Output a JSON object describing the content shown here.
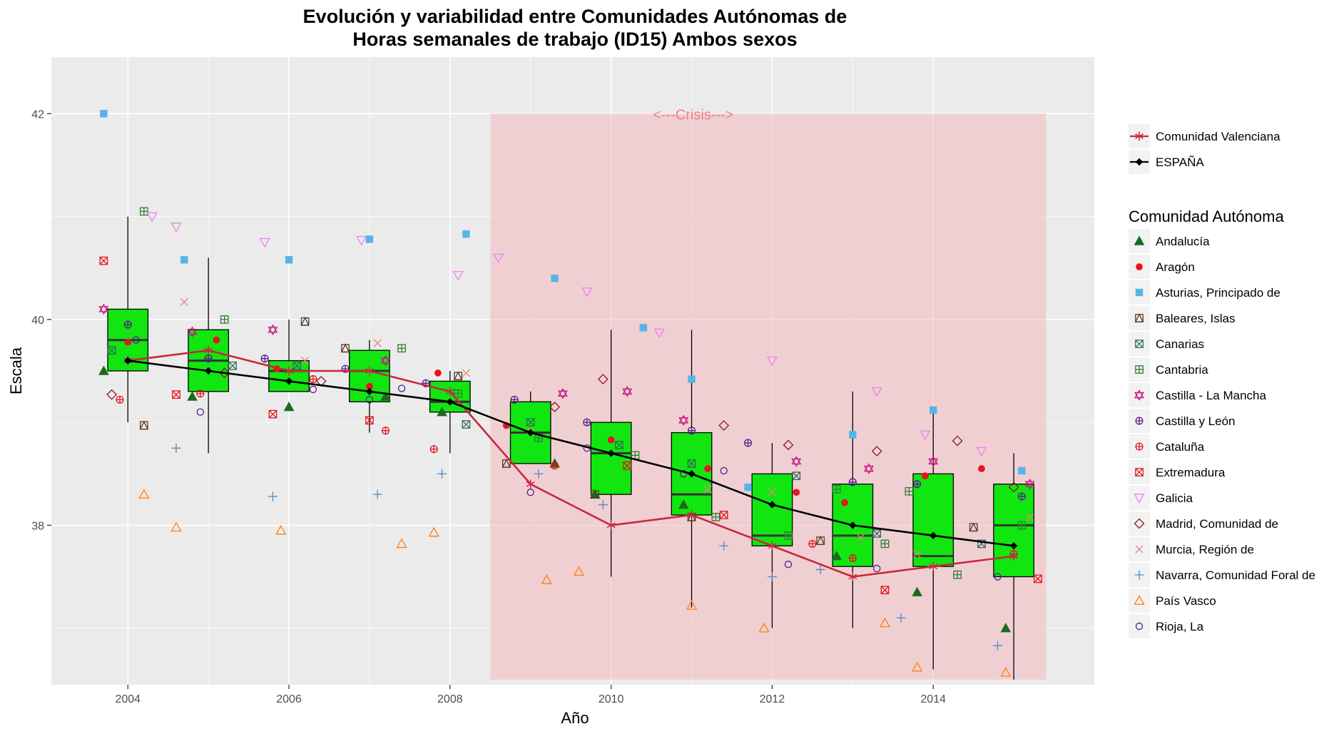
{
  "chart_data": {
    "type": "box",
    "title_lines": [
      "Evolución y variabilidad entre Comunidades Autónomas de",
      "Horas semanales de trabajo (ID15) Ambos sexos"
    ],
    "xlabel": "Año",
    "ylabel": "Escala",
    "xlim": [
      2003.05,
      2016.0
    ],
    "ylim": [
      36.45,
      42.55
    ],
    "x_ticks": [
      2004,
      2006,
      2008,
      2010,
      2012,
      2014
    ],
    "y_ticks": [
      38,
      40,
      42
    ],
    "grid": true,
    "crisis_band": {
      "x_start": 2008.5,
      "x_end": 2015.4,
      "y_start": 36.5,
      "y_end": 42,
      "label": "<---Crisis--->",
      "color": "#f4b8be"
    },
    "boxes": [
      {
        "x": 2004,
        "q1": 39.5,
        "median": 39.8,
        "q3": 40.1,
        "low": 39.0,
        "high": 41.0
      },
      {
        "x": 2005,
        "q1": 39.3,
        "median": 39.6,
        "q3": 39.9,
        "low": 38.7,
        "high": 40.6
      },
      {
        "x": 2006,
        "q1": 39.3,
        "median": 39.5,
        "q3": 39.6,
        "low": 39.3,
        "high": 40.0
      },
      {
        "x": 2007,
        "q1": 39.2,
        "median": 39.5,
        "q3": 39.7,
        "low": 38.9,
        "high": 39.8
      },
      {
        "x": 2008,
        "q1": 39.1,
        "median": 39.2,
        "q3": 39.4,
        "low": 38.7,
        "high": 39.5
      },
      {
        "x": 2009,
        "q1": 38.6,
        "median": 38.9,
        "q3": 39.2,
        "low": 38.6,
        "high": 39.3
      },
      {
        "x": 2010,
        "q1": 38.3,
        "median": 38.7,
        "q3": 39.0,
        "low": 37.5,
        "high": 39.9
      },
      {
        "x": 2011,
        "q1": 38.1,
        "median": 38.3,
        "q3": 38.9,
        "low": 37.2,
        "high": 39.9
      },
      {
        "x": 2012,
        "q1": 37.8,
        "median": 37.9,
        "q3": 38.5,
        "low": 37.0,
        "high": 38.8
      },
      {
        "x": 2013,
        "q1": 37.6,
        "median": 37.9,
        "q3": 38.4,
        "low": 37.0,
        "high": 39.3
      },
      {
        "x": 2014,
        "q1": 37.6,
        "median": 37.7,
        "q3": 38.5,
        "low": 36.6,
        "high": 39.1
      },
      {
        "x": 2015,
        "q1": 37.5,
        "median": 38.0,
        "q3": 38.4,
        "low": 36.5,
        "high": 38.7
      }
    ],
    "box_fill": "#11e611",
    "lines": [
      {
        "name": "Comunidad Valenciana",
        "color": "#c8283c",
        "shape": "asterisk",
        "x": [
          2004,
          2005,
          2006,
          2007,
          2008,
          2009,
          2010,
          2011,
          2012,
          2013,
          2014,
          2015
        ],
        "y": [
          39.6,
          39.7,
          39.5,
          39.5,
          39.3,
          38.4,
          38.0,
          38.1,
          37.8,
          37.5,
          37.6,
          37.7
        ]
      },
      {
        "name": "ESPAÑA",
        "color": "#000000",
        "shape": "diamond",
        "x": [
          2004,
          2005,
          2006,
          2007,
          2008,
          2009,
          2010,
          2011,
          2012,
          2013,
          2014,
          2015
        ],
        "y": [
          39.6,
          39.5,
          39.4,
          39.3,
          39.2,
          38.9,
          38.7,
          38.5,
          38.2,
          38.0,
          37.9,
          37.8
        ]
      }
    ],
    "legend_title": "Comunidad Autónoma",
    "series": [
      {
        "name": "Andalucía",
        "shape": "triangle-filled",
        "color": "#1a6b1a",
        "points": [
          [
            2003.7,
            39.5
          ],
          [
            2004.8,
            39.25
          ],
          [
            2006.0,
            39.15
          ],
          [
            2007.2,
            39.25
          ],
          [
            2007.9,
            39.1
          ],
          [
            2009.3,
            38.6
          ],
          [
            2009.8,
            38.3
          ],
          [
            2010.9,
            38.2
          ],
          [
            2012.8,
            37.7
          ],
          [
            2013.8,
            37.35
          ],
          [
            2014.9,
            37.0
          ]
        ]
      },
      {
        "name": "Aragón",
        "shape": "circle-filled",
        "color": "#e6141e",
        "points": [
          [
            2004.0,
            39.78
          ],
          [
            2005.1,
            39.8
          ],
          [
            2005.85,
            39.52
          ],
          [
            2007.0,
            39.35
          ],
          [
            2007.85,
            39.48
          ],
          [
            2008.7,
            38.97
          ],
          [
            2010.0,
            38.83
          ],
          [
            2011.2,
            38.55
          ],
          [
            2012.3,
            38.32
          ],
          [
            2012.9,
            38.22
          ],
          [
            2013.9,
            38.48
          ],
          [
            2014.6,
            38.55
          ]
        ]
      },
      {
        "name": "Asturias, Principado de",
        "shape": "square-filled",
        "color": "#56b4e9",
        "points": [
          [
            2003.7,
            42.0
          ],
          [
            2004.7,
            40.58
          ],
          [
            2006.0,
            40.58
          ],
          [
            2007.0,
            40.78
          ],
          [
            2008.2,
            40.83
          ],
          [
            2009.3,
            40.4
          ],
          [
            2010.4,
            39.92
          ],
          [
            2011.0,
            39.42
          ],
          [
            2011.7,
            38.37
          ],
          [
            2013.0,
            38.88
          ],
          [
            2014.0,
            39.12
          ],
          [
            2015.1,
            38.53
          ]
        ]
      },
      {
        "name": "Baleares, Islas",
        "shape": "square-triangle",
        "color": "#5a3a1e",
        "points": [
          [
            2004.2,
            38.97
          ],
          [
            2006.2,
            39.98
          ],
          [
            2006.7,
            39.72
          ],
          [
            2008.1,
            39.45
          ],
          [
            2008.7,
            38.6
          ],
          [
            2009.8,
            38.3
          ],
          [
            2011.0,
            38.08
          ],
          [
            2012.6,
            37.85
          ],
          [
            2014.5,
            37.98
          ]
        ]
      },
      {
        "name": "Canarias",
        "shape": "square-x",
        "color": "#2f6b5a",
        "points": [
          [
            2003.8,
            39.7
          ],
          [
            2005.3,
            39.55
          ],
          [
            2006.1,
            39.55
          ],
          [
            2008.2,
            38.98
          ],
          [
            2009.0,
            39.0
          ],
          [
            2010.1,
            38.78
          ],
          [
            2011.0,
            38.6
          ],
          [
            2012.3,
            38.48
          ],
          [
            2013.3,
            37.92
          ],
          [
            2014.6,
            37.82
          ]
        ]
      },
      {
        "name": "Cantabria",
        "shape": "square-plus",
        "color": "#2e7d32",
        "points": [
          [
            2004.2,
            41.05
          ],
          [
            2005.2,
            40.0
          ],
          [
            2007.4,
            39.72
          ],
          [
            2008.1,
            39.28
          ],
          [
            2009.1,
            38.85
          ],
          [
            2010.3,
            38.68
          ],
          [
            2011.3,
            38.08
          ],
          [
            2012.2,
            37.9
          ],
          [
            2012.8,
            38.35
          ],
          [
            2013.4,
            37.82
          ],
          [
            2013.7,
            38.33
          ],
          [
            2014.3,
            37.52
          ],
          [
            2015.1,
            38.0
          ]
        ]
      },
      {
        "name": "Castilla - La Mancha",
        "shape": "star-of-david",
        "color": "#c71585",
        "points": [
          [
            2003.7,
            40.1
          ],
          [
            2004.8,
            39.88
          ],
          [
            2005.8,
            39.9
          ],
          [
            2007.2,
            39.6
          ],
          [
            2009.4,
            39.28
          ],
          [
            2010.2,
            39.3
          ],
          [
            2010.9,
            39.02
          ],
          [
            2012.3,
            38.62
          ],
          [
            2013.2,
            38.55
          ],
          [
            2014.0,
            38.62
          ],
          [
            2015.2,
            38.4
          ]
        ]
      },
      {
        "name": "Castilla y León",
        "shape": "circle-plus",
        "color": "#5b1a8c",
        "points": [
          [
            2004.0,
            39.95
          ],
          [
            2005.0,
            39.62
          ],
          [
            2005.7,
            39.62
          ],
          [
            2006.7,
            39.52
          ],
          [
            2007.7,
            39.38
          ],
          [
            2008.8,
            39.22
          ],
          [
            2009.7,
            39.0
          ],
          [
            2011.0,
            38.92
          ],
          [
            2011.7,
            38.8
          ],
          [
            2013.0,
            38.42
          ],
          [
            2013.8,
            38.4
          ],
          [
            2015.1,
            38.28
          ]
        ]
      },
      {
        "name": "Cataluña",
        "shape": "circle-plus",
        "color": "#e6141e",
        "points": [
          [
            2003.9,
            39.22
          ],
          [
            2004.9,
            39.28
          ],
          [
            2006.3,
            39.42
          ],
          [
            2007.2,
            38.92
          ],
          [
            2007.8,
            38.74
          ],
          [
            2009.3,
            38.58
          ],
          [
            2012.5,
            37.82
          ],
          [
            2013.0,
            37.68
          ],
          [
            2015.0,
            37.72
          ]
        ]
      },
      {
        "name": "Extremadura",
        "shape": "square-x",
        "color": "#e6141e",
        "points": [
          [
            2003.7,
            40.57
          ],
          [
            2004.6,
            39.27
          ],
          [
            2005.8,
            39.08
          ],
          [
            2007.0,
            39.02
          ],
          [
            2010.2,
            38.58
          ],
          [
            2011.4,
            38.1
          ],
          [
            2013.4,
            37.37
          ],
          [
            2015.3,
            37.48
          ]
        ]
      },
      {
        "name": "Galicia",
        "shape": "triangle-down-open",
        "color": "#ee82ee",
        "points": [
          [
            2004.3,
            41.0
          ],
          [
            2004.6,
            40.9
          ],
          [
            2005.7,
            40.75
          ],
          [
            2006.9,
            40.77
          ],
          [
            2008.1,
            40.43
          ],
          [
            2008.6,
            40.6
          ],
          [
            2009.7,
            40.27
          ],
          [
            2010.6,
            39.87
          ],
          [
            2012.0,
            39.6
          ],
          [
            2013.3,
            39.3
          ],
          [
            2013.9,
            38.88
          ],
          [
            2014.6,
            38.72
          ]
        ]
      },
      {
        "name": "Madrid, Comunidad de",
        "shape": "diamond-open",
        "color": "#8b1a1a",
        "points": [
          [
            2003.8,
            39.27
          ],
          [
            2005.2,
            39.48
          ],
          [
            2006.4,
            39.4
          ],
          [
            2009.3,
            39.15
          ],
          [
            2009.9,
            39.42
          ],
          [
            2011.4,
            38.97
          ],
          [
            2012.2,
            38.78
          ],
          [
            2013.3,
            38.72
          ],
          [
            2014.3,
            38.82
          ],
          [
            2015.0,
            38.37
          ]
        ]
      },
      {
        "name": "Murcia, Región de",
        "shape": "x",
        "color": "#f08080",
        "points": [
          [
            2004.7,
            40.17
          ],
          [
            2006.2,
            39.6
          ],
          [
            2007.1,
            39.77
          ],
          [
            2008.2,
            39.48
          ],
          [
            2009.0,
            38.92
          ],
          [
            2011.2,
            38.35
          ],
          [
            2012.0,
            38.32
          ],
          [
            2013.1,
            37.88
          ],
          [
            2013.8,
            37.72
          ],
          [
            2015.2,
            38.08
          ]
        ]
      },
      {
        "name": "Navarra, Comunidad Foral de",
        "shape": "plus",
        "color": "#4a8ac4",
        "points": [
          [
            2004.6,
            38.75
          ],
          [
            2005.8,
            38.28
          ],
          [
            2007.1,
            38.3
          ],
          [
            2007.9,
            38.5
          ],
          [
            2009.1,
            38.5
          ],
          [
            2009.9,
            38.2
          ],
          [
            2011.4,
            37.8
          ],
          [
            2012.0,
            37.5
          ],
          [
            2012.6,
            37.57
          ],
          [
            2013.6,
            37.1
          ],
          [
            2014.8,
            36.83
          ]
        ]
      },
      {
        "name": "País Vasco",
        "shape": "triangle-open",
        "color": "#ff7f0e",
        "points": [
          [
            2004.2,
            38.3
          ],
          [
            2004.6,
            37.98
          ],
          [
            2005.9,
            37.95
          ],
          [
            2007.4,
            37.82
          ],
          [
            2007.8,
            37.93
          ],
          [
            2009.2,
            37.47
          ],
          [
            2009.6,
            37.55
          ],
          [
            2011.0,
            37.22
          ],
          [
            2011.9,
            37.0
          ],
          [
            2013.4,
            37.05
          ],
          [
            2013.8,
            36.62
          ],
          [
            2014.9,
            36.57
          ]
        ]
      },
      {
        "name": "Rioja, La",
        "shape": "circle-open",
        "color": "#5b1a8c",
        "points": [
          [
            2004.1,
            39.8
          ],
          [
            2004.9,
            39.1
          ],
          [
            2006.3,
            39.32
          ],
          [
            2007.0,
            39.22
          ],
          [
            2007.4,
            39.33
          ],
          [
            2009.0,
            38.32
          ],
          [
            2009.7,
            38.75
          ],
          [
            2010.9,
            38.5
          ],
          [
            2011.4,
            38.53
          ],
          [
            2012.2,
            37.62
          ],
          [
            2013.3,
            37.58
          ],
          [
            2014.8,
            37.5
          ]
        ]
      }
    ]
  }
}
